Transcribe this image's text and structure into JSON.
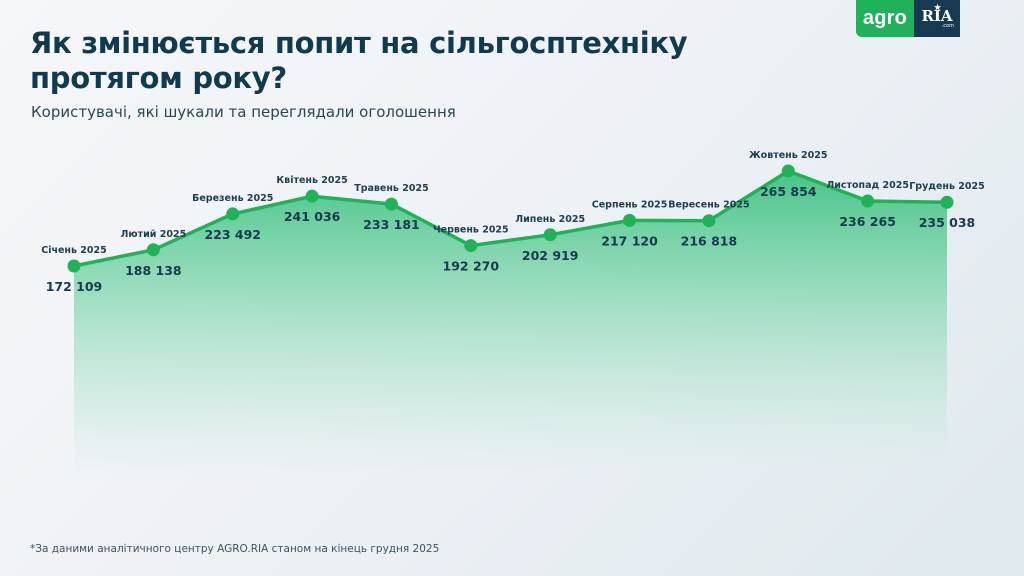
{
  "brand": {
    "agro": "agro",
    "ria": "RIA",
    "ria_suffix": ".com",
    "agro_color": "#1fb25a",
    "ria_color": "#173a52"
  },
  "header": {
    "title_line1": "Як змінюється попит на сільгосптехніку",
    "title_line2": "протягом року?",
    "subtitle": "Користувачі, які шукали та переглядали оголошення"
  },
  "footnote": "*За даними аналітичного центру AGRO.RIA станом на кінець грудня 2025",
  "colors": {
    "line": "#1db455",
    "fill_top": "#4cc88a",
    "fill_bottom": "#e3eef0",
    "text": "#123a4e"
  },
  "chart_data": {
    "type": "area",
    "title": "Як змінюється попит на сільгосптехніку протягом року?",
    "subtitle": "Користувачі, які шукали та переглядали оголошення",
    "xlabel": "",
    "ylabel": "Користувачі",
    "grid": false,
    "legend": "none",
    "categories": [
      "Січень 2025",
      "Лютий 2025",
      "Березень 2025",
      "Квітень 2025",
      "Травень 2025",
      "Червень 2025",
      "Липень 2025",
      "Серпень 2025",
      "Вересень 2025",
      "Жовтень 2025",
      "Листопад 2025",
      "Грудень 2025"
    ],
    "values": [
      172109,
      188138,
      223492,
      241036,
      233181,
      192270,
      202919,
      217120,
      216818,
      265854,
      236265,
      235038
    ],
    "value_labels": [
      "172 109",
      "188 138",
      "223 492",
      "241 036",
      "233 181",
      "192 270",
      "202 919",
      "217 120",
      "216 818",
      "265 854",
      "236 265",
      "235 038"
    ],
    "series": [
      {
        "name": "Користувачі",
        "values": [
          172109,
          188138,
          223492,
          241036,
          233181,
          192270,
          202919,
          217120,
          216818,
          265854,
          236265,
          235038
        ]
      }
    ]
  }
}
